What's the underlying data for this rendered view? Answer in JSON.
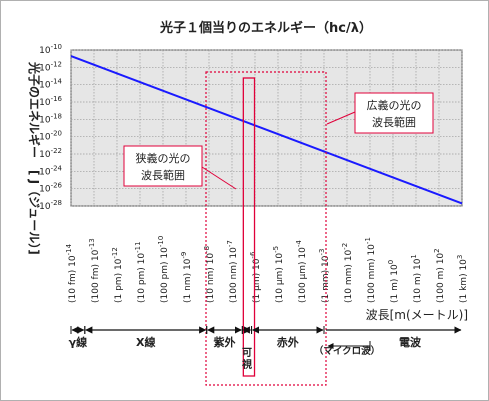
{
  "chart_data": {
    "type": "line",
    "title": "光子１個当りのエネルギー（hc/λ）",
    "ylabel": "光子のエネルギー　[ J（ジュール）]",
    "xlabel": "波長[m(メートル)]",
    "x_scale": "log",
    "y_scale": "log",
    "x_ticks": [
      {
        "exp": "-14",
        "label": "(10 fm)"
      },
      {
        "exp": "-13",
        "label": "(100 fm)"
      },
      {
        "exp": "-12",
        "label": "(1 pm)"
      },
      {
        "exp": "-11",
        "label": "(10 pm)"
      },
      {
        "exp": "-10",
        "label": "(100 pm)"
      },
      {
        "exp": "-9",
        "label": "(1 nm)"
      },
      {
        "exp": "-8",
        "label": "(10 nm)"
      },
      {
        "exp": "-7",
        "label": "(100 nm)"
      },
      {
        "exp": "-6",
        "label": "(1 μm)"
      },
      {
        "exp": "-5",
        "label": "(10 μm)"
      },
      {
        "exp": "-4",
        "label": "(100 μm)"
      },
      {
        "exp": "-3",
        "label": "(1 mm)"
      },
      {
        "exp": "-2",
        "label": "(10 mm)"
      },
      {
        "exp": "-1",
        "label": "(100 mm)"
      },
      {
        "exp": "0",
        "label": "(1 m)"
      },
      {
        "exp": "1",
        "label": "(10 m)"
      },
      {
        "exp": "2",
        "label": "(100 m)"
      },
      {
        "exp": "3",
        "label": "(1 km)"
      }
    ],
    "y_ticks": [
      "-10",
      "-12",
      "-14",
      "-16",
      "-18",
      "-20",
      "-22",
      "-24",
      "-26",
      "-28"
    ],
    "xlim_exp": [
      -14,
      3
    ],
    "ylim_exp": [
      -28,
      -10
    ],
    "series": [
      {
        "x": [
          1e-14,
          1000.0
        ],
        "y": [
          1.99e-11,
          1.99e-28
        ],
        "color": "#1a1aff"
      }
    ],
    "grid": true,
    "annotations": {
      "narrow_label": "狭義の光の\n波長範囲",
      "broad_label": "広義の光の\n波長範囲",
      "narrow_range_m": [
        3.8e-07,
        7.8e-07
      ],
      "broad_range_m": [
        1e-08,
        0.001
      ]
    },
    "bands": [
      {
        "label": "γ線",
        "range_exp": [
          -14,
          -13.4
        ],
        "arrow": "both"
      },
      {
        "label": "X線",
        "range_exp": [
          -13.4,
          -8.1
        ],
        "arrow": "both"
      },
      {
        "label": "紫外",
        "range_exp": [
          -8.1,
          -6.55
        ],
        "arrow": "both"
      },
      {
        "label": "可\n視",
        "range_exp": [
          -6.55,
          -6.15
        ],
        "arrow": "both"
      },
      {
        "label": "赤外",
        "range_exp": [
          -6.15,
          -3
        ],
        "arrow": "both"
      },
      {
        "label": "（マイクロ波）",
        "range_exp": [
          -3,
          -1
        ],
        "arrow": "left"
      },
      {
        "label": "電波",
        "range_exp": [
          -3,
          3
        ],
        "arrow": "right"
      }
    ],
    "colors": {
      "line": "#1a1aff",
      "highlight": "#e0003a",
      "plot_bg": "#e6e6e6"
    }
  }
}
